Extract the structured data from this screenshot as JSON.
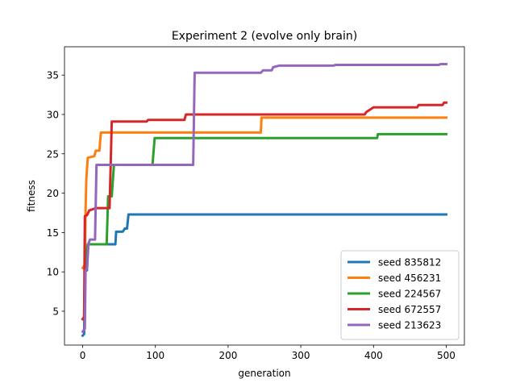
{
  "chart_data": {
    "type": "line",
    "title": "Experiment 2 (evolve only brain)",
    "xlabel": "generation",
    "ylabel": "fitness",
    "xlim": [
      -25,
      525
    ],
    "ylim": [
      0.7,
      38.6
    ],
    "xticks": [
      0,
      100,
      200,
      300,
      400,
      500
    ],
    "yticks": [
      5,
      10,
      15,
      20,
      25,
      30,
      35
    ],
    "grid": false,
    "legend_position": "lower-right",
    "series": [
      {
        "name": "seed 835812",
        "color": "#1f77b4",
        "points": [
          [
            0,
            1.9
          ],
          [
            2,
            2.1
          ],
          [
            3,
            9.5
          ],
          [
            4,
            10.1
          ],
          [
            6,
            10.2
          ],
          [
            7,
            13.5
          ],
          [
            12,
            13.5
          ],
          [
            14,
            13.5
          ],
          [
            45,
            13.5
          ],
          [
            46,
            15.1
          ],
          [
            55,
            15.1
          ],
          [
            58,
            15.5
          ],
          [
            61,
            15.5
          ],
          [
            63,
            17.3
          ],
          [
            500,
            17.3
          ]
        ]
      },
      {
        "name": "seed 456231",
        "color": "#ff7f0e",
        "points": [
          [
            0,
            10.5
          ],
          [
            3,
            10.9
          ],
          [
            4,
            17.8
          ],
          [
            5,
            21.8
          ],
          [
            7,
            24.5
          ],
          [
            16,
            24.7
          ],
          [
            18,
            25.4
          ],
          [
            23,
            25.4
          ],
          [
            25,
            27.7
          ],
          [
            245,
            27.7
          ],
          [
            246,
            29.6
          ],
          [
            500,
            29.6
          ]
        ]
      },
      {
        "name": "seed 224567",
        "color": "#2ca02c",
        "points": [
          [
            0,
            4.0
          ],
          [
            2,
            4.1
          ],
          [
            3,
            9.8
          ],
          [
            5,
            12.0
          ],
          [
            7,
            13.5
          ],
          [
            33,
            13.5
          ],
          [
            35,
            19.6
          ],
          [
            40,
            19.6
          ],
          [
            43,
            23.6
          ],
          [
            96,
            23.6
          ],
          [
            99,
            27.0
          ],
          [
            405,
            27.0
          ],
          [
            406,
            27.5
          ],
          [
            500,
            27.5
          ]
        ]
      },
      {
        "name": "seed 672557",
        "color": "#d62728",
        "points": [
          [
            0,
            4.0
          ],
          [
            2,
            4.3
          ],
          [
            3,
            17.1
          ],
          [
            6,
            17.2
          ],
          [
            9,
            17.8
          ],
          [
            18,
            18.1
          ],
          [
            37,
            18.1
          ],
          [
            40,
            29.1
          ],
          [
            88,
            29.1
          ],
          [
            90,
            29.3
          ],
          [
            140,
            29.3
          ],
          [
            142,
            30.0
          ],
          [
            388,
            30.0
          ],
          [
            390,
            30.3
          ],
          [
            400,
            30.9
          ],
          [
            460,
            30.9
          ],
          [
            462,
            31.2
          ],
          [
            495,
            31.2
          ],
          [
            497,
            31.5
          ],
          [
            500,
            31.5
          ]
        ]
      },
      {
        "name": "seed 213623",
        "color": "#9467bd",
        "points": [
          [
            0,
            2.4
          ],
          [
            3,
            2.8
          ],
          [
            4,
            10.2
          ],
          [
            6,
            10.4
          ],
          [
            8,
            13.6
          ],
          [
            10,
            14.1
          ],
          [
            17,
            14.1
          ],
          [
            19,
            23.6
          ],
          [
            152,
            23.6
          ],
          [
            154,
            35.3
          ],
          [
            245,
            35.3
          ],
          [
            248,
            35.6
          ],
          [
            260,
            35.6
          ],
          [
            262,
            36.0
          ],
          [
            270,
            36.2
          ],
          [
            345,
            36.2
          ],
          [
            348,
            36.3
          ],
          [
            490,
            36.3
          ],
          [
            492,
            36.4
          ],
          [
            500,
            36.4
          ]
        ]
      }
    ]
  }
}
